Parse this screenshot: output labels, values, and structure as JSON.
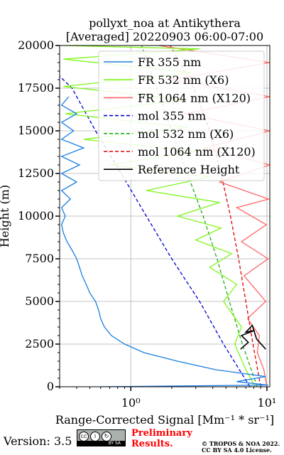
{
  "chart_data": {
    "type": "line",
    "title_line1": "pollyxt_noa at Antikythera",
    "title_line2": "[Averaged] 20220903 06:00-07:00",
    "xlabel": "Range-Corrected Signal [Mm⁻¹ * sr⁻¹]",
    "ylabel": "Height (m)",
    "xscale": "log",
    "xlim": [
      0.3,
      10.5
    ],
    "ylim": [
      0,
      20000
    ],
    "xticks": [
      1,
      10
    ],
    "xtick_labels": [
      "10⁰",
      "10¹"
    ],
    "yticks": [
      0,
      2500,
      5000,
      7500,
      10000,
      12500,
      15000,
      17500,
      20000
    ],
    "ytick_labels": [
      "0",
      "2500",
      "5000",
      "7500",
      "10000",
      "12500",
      "15000",
      "17500",
      "20000"
    ],
    "grid": true,
    "legend_position": "upper-right",
    "colors": {
      "fr355": "#1a7ee0",
      "fr532": "#7ff51a",
      "fr1064": "#ff6464",
      "mol355": "#0000cc",
      "mol532": "#22aa22",
      "mol1064": "#dd0000",
      "ref": "#000000"
    },
    "legend": [
      {
        "key": "fr355",
        "label": "FR 355 nm",
        "style": "solid"
      },
      {
        "key": "fr532",
        "label": "FR 532 nm (X6)",
        "style": "solid"
      },
      {
        "key": "fr1064",
        "label": "FR 1064 nm (X120)",
        "style": "solid"
      },
      {
        "key": "mol355",
        "label": "mol 355 nm",
        "style": "dashed"
      },
      {
        "key": "mol532",
        "label": "mol 532 nm (X6)",
        "style": "dashed"
      },
      {
        "key": "mol1064",
        "label": "mol 1064 nm (X120)",
        "style": "dashed"
      },
      {
        "key": "ref",
        "label": "Reference Height",
        "style": "solid"
      }
    ],
    "series": [
      {
        "key": "mol355",
        "points": [
          [
            7.5,
            0
          ],
          [
            4.8,
            2500
          ],
          [
            3.2,
            5000
          ],
          [
            2.0,
            7500
          ],
          [
            1.3,
            10000
          ],
          [
            0.85,
            12500
          ],
          [
            0.55,
            15000
          ],
          [
            0.37,
            17500
          ],
          [
            0.3,
            18200
          ]
        ]
      },
      {
        "key": "mol532",
        "points": [
          [
            8.5,
            0
          ],
          [
            6.6,
            2500
          ],
          [
            5.3,
            5000
          ],
          [
            4.3,
            7500
          ],
          [
            3.4,
            10000
          ],
          [
            2.6,
            12500
          ],
          [
            2.0,
            15000
          ],
          [
            1.55,
            17500
          ],
          [
            1.2,
            20000
          ]
        ]
      },
      {
        "key": "mol1064",
        "points": [
          [
            9.0,
            0
          ],
          [
            7.9,
            2500
          ],
          [
            7.0,
            5000
          ],
          [
            6.2,
            7500
          ],
          [
            5.4,
            10000
          ],
          [
            4.6,
            12500
          ],
          [
            3.8,
            15000
          ],
          [
            2.9,
            17500
          ],
          [
            1.95,
            20000
          ]
        ]
      },
      {
        "key": "fr1064",
        "points": [
          [
            10.0,
            0
          ],
          [
            9.5,
            1000
          ],
          [
            8.5,
            2000
          ],
          [
            8.8,
            3000
          ],
          [
            7.2,
            4000
          ],
          [
            9.8,
            5000
          ],
          [
            6.8,
            6500
          ],
          [
            10.2,
            7500
          ],
          [
            6.5,
            8500
          ],
          [
            9.9,
            9500
          ],
          [
            6.0,
            10500
          ],
          [
            10.3,
            11000
          ],
          [
            4.5,
            12000
          ],
          [
            10.5,
            13000
          ],
          [
            3.5,
            14000
          ],
          [
            10.5,
            15000
          ],
          [
            2.5,
            16000
          ],
          [
            10.5,
            17000
          ],
          [
            2.0,
            18000
          ],
          [
            10.5,
            19000
          ],
          [
            1.6,
            20000
          ]
        ]
      },
      {
        "key": "fr532",
        "points": [
          [
            8.2,
            0
          ],
          [
            7.0,
            1000
          ],
          [
            5.8,
            2500
          ],
          [
            6.5,
            3500
          ],
          [
            4.8,
            5000
          ],
          [
            6.0,
            6000
          ],
          [
            3.8,
            7000
          ],
          [
            5.5,
            7800
          ],
          [
            3.0,
            8600
          ],
          [
            4.6,
            9300
          ],
          [
            2.2,
            10000
          ],
          [
            4.5,
            10800
          ],
          [
            1.3,
            11500
          ],
          [
            3.8,
            12300
          ],
          [
            0.7,
            13000
          ],
          [
            3.0,
            13800
          ],
          [
            0.45,
            14500
          ],
          [
            2.6,
            15200
          ],
          [
            0.33,
            16000
          ],
          [
            2.5,
            16800
          ],
          [
            0.32,
            17600
          ],
          [
            2.8,
            18400
          ],
          [
            0.32,
            19200
          ],
          [
            3.2,
            19800
          ],
          [
            0.32,
            20000
          ]
        ]
      },
      {
        "key": "fr355",
        "points": [
          [
            0.6,
            0
          ],
          [
            10.2,
            100
          ],
          [
            6.0,
            300
          ],
          [
            9.8,
            600
          ],
          [
            4.2,
            1000
          ],
          [
            2.2,
            1500
          ],
          [
            1.25,
            2000
          ],
          [
            0.9,
            2500
          ],
          [
            0.72,
            3000
          ],
          [
            0.64,
            3500
          ],
          [
            0.6,
            4000
          ],
          [
            0.58,
            4500
          ],
          [
            0.55,
            5000
          ],
          [
            0.5,
            5500
          ],
          [
            0.47,
            6000
          ],
          [
            0.44,
            6500
          ],
          [
            0.42,
            7000
          ],
          [
            0.4,
            7500
          ],
          [
            0.37,
            8000
          ],
          [
            0.34,
            8500
          ],
          [
            0.32,
            9000
          ],
          [
            0.31,
            9500
          ],
          [
            0.33,
            10000
          ],
          [
            0.31,
            10500
          ],
          [
            0.36,
            11000
          ],
          [
            0.31,
            11500
          ],
          [
            0.4,
            12000
          ],
          [
            0.31,
            12500
          ],
          [
            0.42,
            13000
          ],
          [
            0.31,
            13500
          ],
          [
            0.45,
            14000
          ],
          [
            0.31,
            14500
          ],
          [
            0.38,
            15000
          ],
          [
            0.31,
            15500
          ],
          [
            0.4,
            16000
          ],
          [
            0.31,
            16500
          ],
          [
            0.35,
            17000
          ]
        ]
      },
      {
        "key": "ref",
        "points": [
          [
            6.4,
            2200
          ],
          [
            7.3,
            2600
          ],
          [
            6.5,
            3000
          ],
          [
            8.1,
            3300
          ],
          [
            7.0,
            3200
          ],
          [
            7.8,
            3600
          ],
          [
            8.4,
            2800
          ],
          [
            9.8,
            2200
          ]
        ]
      }
    ]
  },
  "footer": {
    "version": "Version: 3.5",
    "cc_text": "BY   SA",
    "cc_icons": [
      "cc-icon",
      "by-icon",
      "sa-icon"
    ],
    "preliminary_line1": "Preliminary",
    "preliminary_line2": "Results.",
    "copyright_line1": "© TROPOS & NOA 2022.",
    "copyright_line2": "CC BY SA 4.0 License."
  }
}
